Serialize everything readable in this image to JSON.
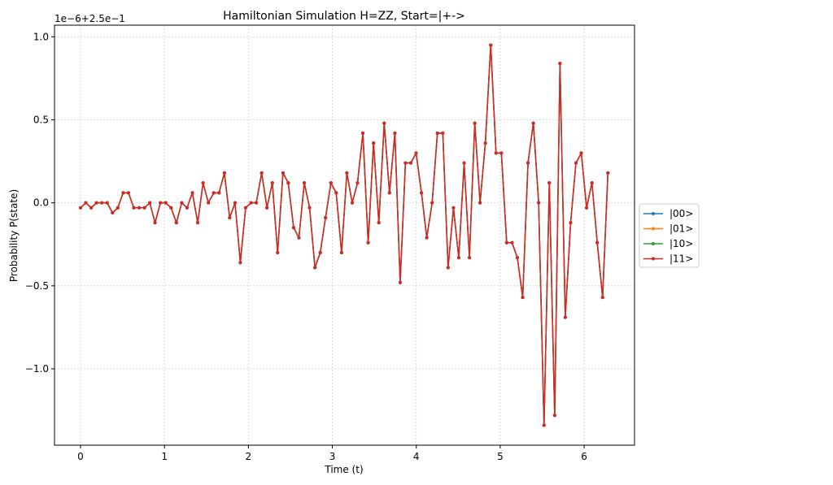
{
  "chart_data": {
    "type": "line",
    "title": "Hamiltonian Simulation H=ZZ, Start=|+->",
    "xlabel": "Time (t)",
    "ylabel": "Probability P(state)",
    "offset_text": "1e−6+2.5e−1",
    "xlim": [
      -0.31,
      6.6
    ],
    "ylim": [
      -1.46,
      1.07
    ],
    "xticks": [
      0,
      1,
      2,
      3,
      4,
      5,
      6
    ],
    "xtick_labels": [
      "0",
      "1",
      "2",
      "3",
      "4",
      "5",
      "6"
    ],
    "yticks": [
      -1.0,
      -0.5,
      0.0,
      0.5,
      1.0
    ],
    "ytick_labels": [
      "−1.0",
      "−0.5",
      "0.0",
      "0.5",
      "1.0"
    ],
    "grid": true,
    "legend_position": "center-right outside",
    "y_units_note": "values are (P - 0.25) x 1e6",
    "series": [
      {
        "name": "|00>",
        "color": "#1f77b4"
      },
      {
        "name": "|01>",
        "color": "#ff7f0e"
      },
      {
        "name": "|10>",
        "color": "#2ca02c"
      },
      {
        "name": "|11>",
        "color": "#d62728"
      }
    ],
    "x": [
      0.0,
      0.063,
      0.127,
      0.19,
      0.254,
      0.317,
      0.381,
      0.444,
      0.508,
      0.571,
      0.635,
      0.698,
      0.762,
      0.825,
      0.888,
      0.952,
      1.015,
      1.079,
      1.142,
      1.206,
      1.269,
      1.333,
      1.396,
      1.46,
      1.523,
      1.587,
      1.65,
      1.714,
      1.777,
      1.841,
      1.904,
      1.967,
      2.031,
      2.094,
      2.158,
      2.221,
      2.285,
      2.348,
      2.412,
      2.475,
      2.539,
      2.602,
      2.666,
      2.729,
      2.793,
      2.856,
      2.919,
      2.983,
      3.046,
      3.11,
      3.173,
      3.237,
      3.3,
      3.364,
      3.427,
      3.491,
      3.554,
      3.618,
      3.681,
      3.745,
      3.808,
      3.871,
      3.935,
      3.998,
      4.062,
      4.125,
      4.189,
      4.252,
      4.316,
      4.379,
      4.443,
      4.506,
      4.57,
      4.633,
      4.697,
      4.76,
      4.823,
      4.887,
      4.95,
      5.014,
      5.077,
      5.141,
      5.204,
      5.268,
      5.331,
      5.395,
      5.458,
      5.522,
      5.585,
      5.649,
      5.712,
      5.775,
      5.839,
      5.902,
      5.966,
      6.029,
      6.093,
      6.156,
      6.22,
      6.283
    ],
    "values": [
      -0.03,
      0.0,
      -0.03,
      0.0,
      0.0,
      0.0,
      -0.06,
      -0.03,
      0.06,
      0.06,
      -0.03,
      -0.03,
      -0.03,
      0.0,
      -0.12,
      0.0,
      0.0,
      -0.03,
      -0.12,
      0.0,
      -0.03,
      0.06,
      -0.12,
      0.12,
      0.0,
      0.06,
      0.06,
      0.18,
      -0.09,
      0.0,
      -0.36,
      -0.03,
      0.0,
      0.0,
      0.18,
      -0.03,
      0.12,
      -0.3,
      0.18,
      0.12,
      -0.15,
      -0.21,
      0.12,
      -0.03,
      -0.39,
      -0.3,
      -0.09,
      0.12,
      0.06,
      -0.3,
      0.18,
      0.0,
      0.12,
      0.42,
      -0.24,
      0.36,
      -0.12,
      0.48,
      0.06,
      0.42,
      -0.48,
      0.24,
      0.24,
      0.3,
      0.06,
      -0.21,
      0.0,
      0.42,
      0.42,
      -0.39,
      -0.03,
      -0.33,
      0.24,
      -0.33,
      0.48,
      0.0,
      0.36,
      0.95,
      0.3,
      0.3,
      -0.24,
      -0.24,
      -0.33,
      -0.57,
      0.24,
      0.48,
      0.0,
      -1.34,
      0.12,
      -1.28,
      0.84,
      -0.69,
      -0.12,
      0.24,
      0.3,
      -0.03,
      0.12,
      -0.24,
      -0.57,
      0.18
    ]
  }
}
